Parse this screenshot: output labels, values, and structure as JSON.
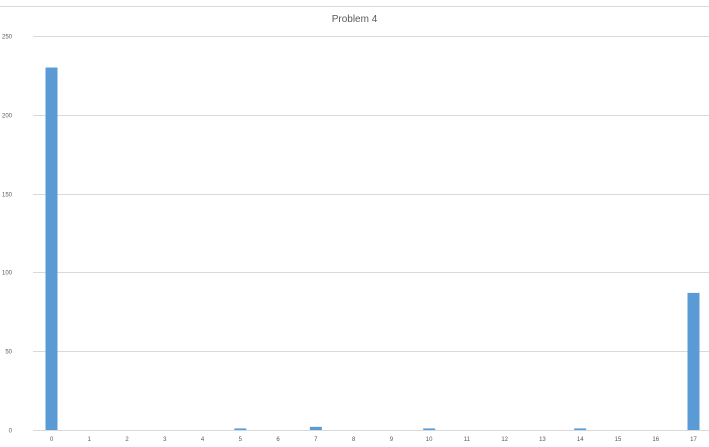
{
  "chart_data": {
    "type": "bar",
    "title": "Problem 4",
    "xlabel": "",
    "ylabel": "",
    "categories": [
      "0",
      "1",
      "2",
      "3",
      "4",
      "5",
      "6",
      "7",
      "8",
      "9",
      "10",
      "11",
      "12",
      "13",
      "14",
      "15",
      "16",
      "17"
    ],
    "values": [
      230,
      0,
      0,
      0,
      0,
      1,
      0,
      2,
      0,
      0,
      1,
      0,
      0,
      0,
      1,
      0,
      0,
      87
    ],
    "ylim": [
      0,
      250
    ],
    "yticks": [
      0,
      50,
      100,
      150,
      200,
      250
    ],
    "grid": true,
    "legend": "none",
    "bar_color": "#5b9bd5",
    "grid_color": "#d9d9d9"
  }
}
